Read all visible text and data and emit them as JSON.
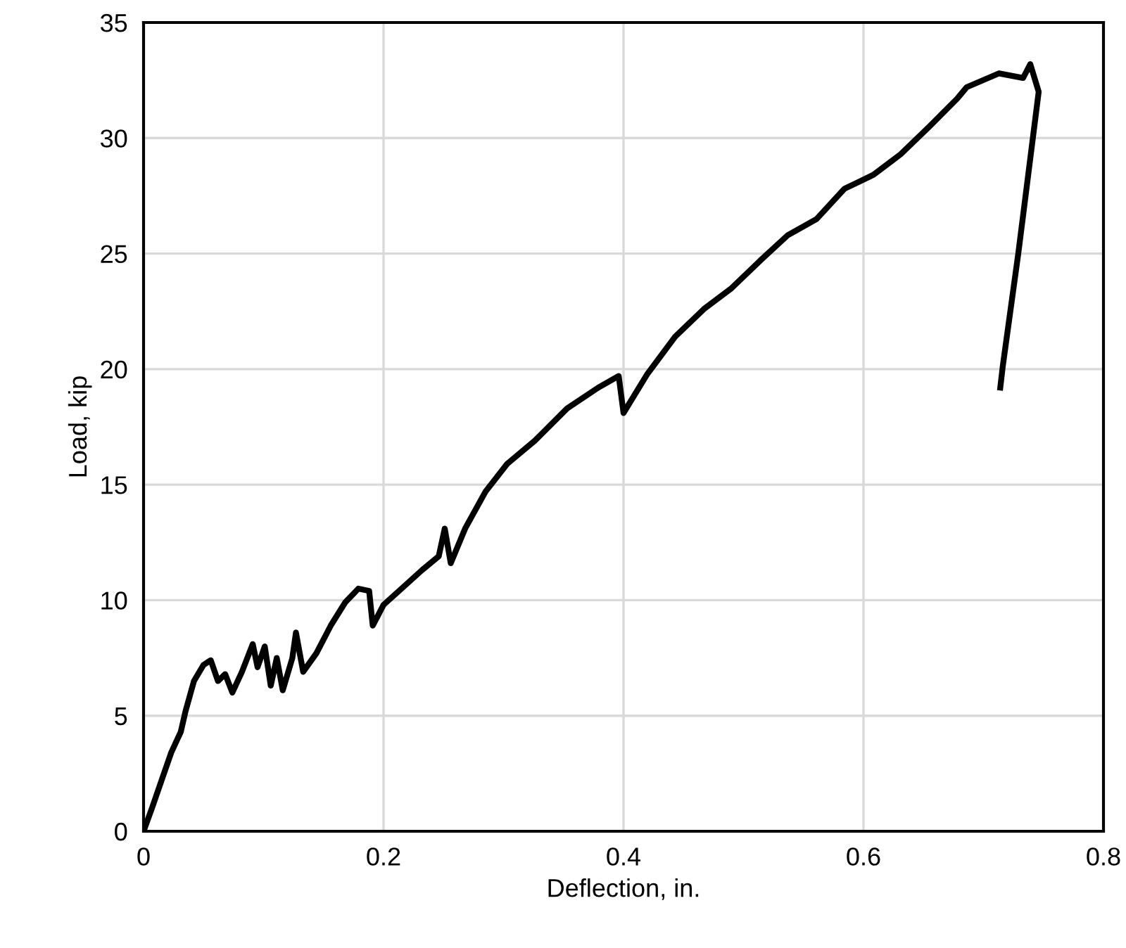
{
  "chart_data": {
    "type": "line",
    "xlabel": "Deflection, in.",
    "ylabel": "Load, kip",
    "xlim": [
      0,
      0.8
    ],
    "xticks": [
      0,
      0.2,
      0.4,
      0.6,
      0.8
    ],
    "ylim": [
      0,
      35
    ],
    "yticks": [
      0,
      5,
      10,
      15,
      20,
      25,
      30,
      35
    ],
    "grid": true,
    "marker": "none",
    "line_style": "solid",
    "series": [
      {
        "color": "#000000",
        "x": [
          0,
          0.007,
          0.015,
          0.023,
          0.031,
          0.035,
          0.042,
          0.05,
          0.056,
          0.062,
          0.068,
          0.074,
          0.082,
          0.091,
          0.095,
          0.101,
          0.106,
          0.111,
          0.116,
          0.124,
          0.127,
          0.133,
          0.144,
          0.156,
          0.168,
          0.179,
          0.188,
          0.191,
          0.2,
          0.215,
          0.232,
          0.246,
          0.251,
          0.256,
          0.268,
          0.285,
          0.303,
          0.326,
          0.353,
          0.379,
          0.396,
          0.4,
          0.42,
          0.443,
          0.467,
          0.49,
          0.514,
          0.537,
          0.561,
          0.584,
          0.608,
          0.631,
          0.655,
          0.678,
          0.686,
          0.713,
          0.733,
          0.739,
          0.746,
          0.729,
          0.716,
          0.714
        ],
        "values": [
          0,
          1.0,
          2.2,
          3.4,
          4.3,
          5.2,
          6.5,
          7.2,
          7.4,
          6.5,
          6.8,
          6.0,
          6.9,
          8.1,
          7.1,
          8.0,
          6.3,
          7.5,
          6.1,
          7.5,
          8.6,
          6.9,
          7.7,
          8.9,
          9.9,
          10.5,
          10.4,
          8.9,
          9.8,
          10.5,
          11.3,
          11.9,
          13.1,
          11.6,
          13.1,
          14.7,
          15.9,
          16.9,
          18.3,
          19.2,
          19.7,
          18.1,
          19.8,
          21.4,
          22.6,
          23.5,
          24.7,
          25.8,
          26.5,
          27.8,
          28.4,
          29.3,
          30.5,
          31.7,
          32.2,
          32.8,
          32.6,
          33.2,
          32.0,
          25.0,
          20.1,
          19.2
        ]
      }
    ]
  }
}
